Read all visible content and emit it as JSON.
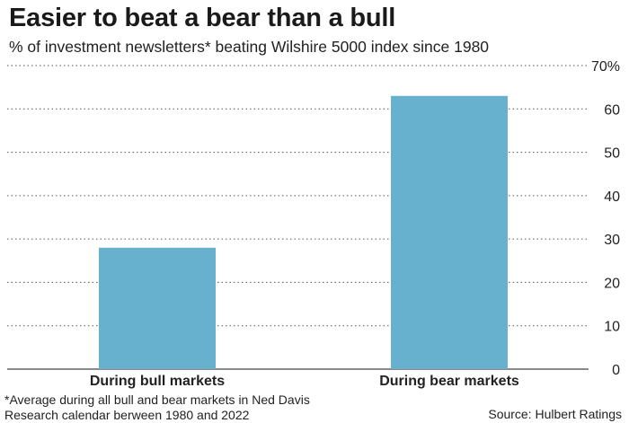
{
  "title": "Easier to beat a bear than a bull",
  "subtitle": "% of investment newsletters* beating Wilshire 5000 index since 1980",
  "footnote": "*Average during all bull and bear markets in Ned Davis Research calendar berween 1980 and 2022",
  "source": "Source: Hulbert Ratings",
  "colors": {
    "bar": "#67b1cf",
    "grid": "#555555",
    "text": "#222222"
  },
  "chart_data": {
    "type": "bar",
    "categories": [
      "During bull markets",
      "During bear markets"
    ],
    "values": [
      28,
      63
    ],
    "title": "Easier to beat a bear than a bull",
    "subtitle": "% of investment newsletters* beating Wilshire 5000 index since 1980",
    "xlabel": "",
    "ylabel": "",
    "ylim": [
      0,
      70
    ],
    "yticks": [
      0,
      10,
      20,
      30,
      40,
      50,
      60,
      70
    ],
    "ytick_labels": [
      "0",
      "10",
      "20",
      "30",
      "40",
      "50",
      "60",
      "70%"
    ],
    "grid": true,
    "y_axis_side": "right"
  }
}
